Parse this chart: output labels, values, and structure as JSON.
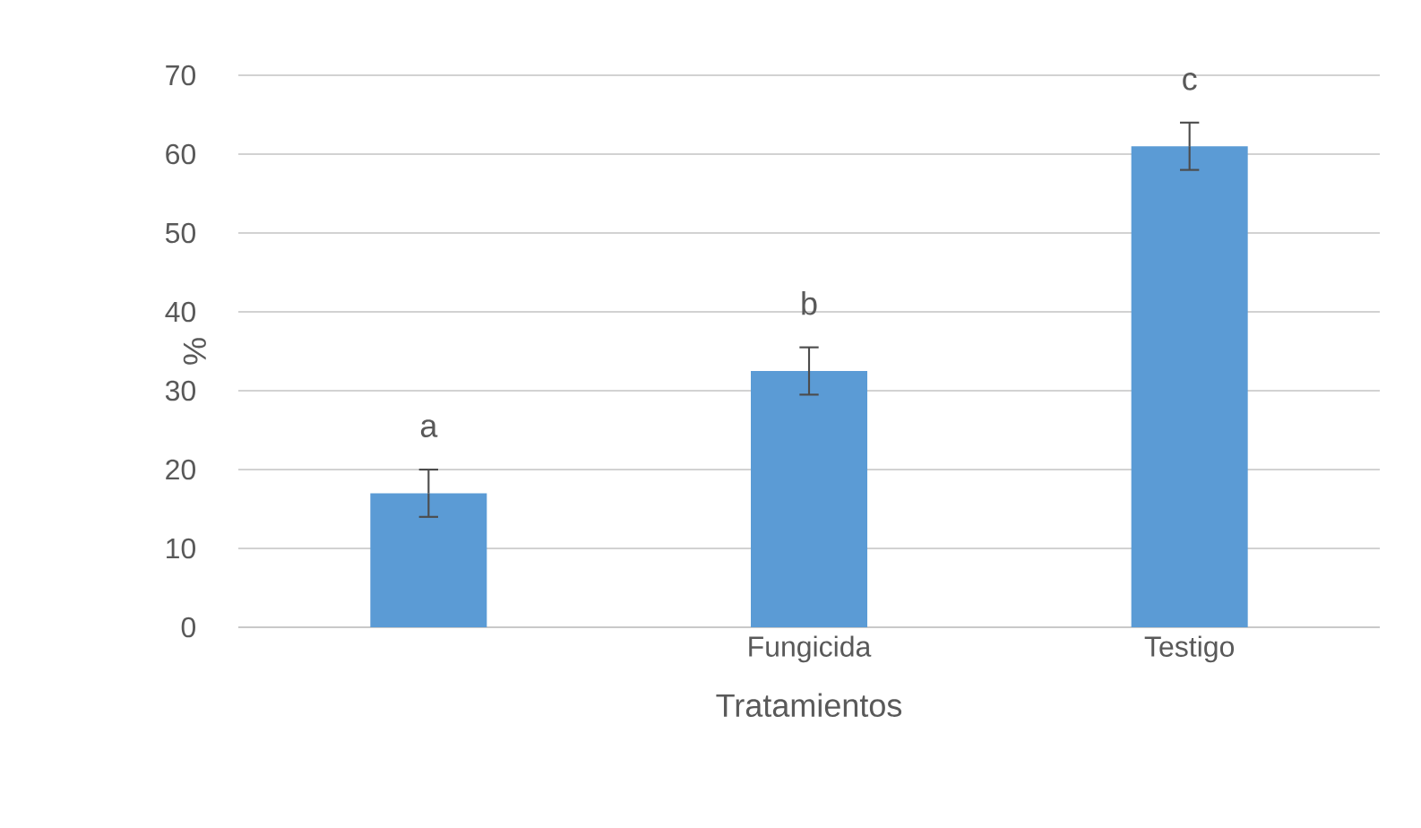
{
  "chart_data": {
    "type": "bar",
    "xlabel": "Tratamientos",
    "ylabel": "%",
    "categories": [
      null,
      "Fungicida",
      "Testigo"
    ],
    "values": [
      17,
      32.5,
      61
    ],
    "errors": [
      3,
      3,
      3
    ],
    "color": "#5b9bd5",
    "ylim": [
      0,
      70
    ],
    "yticks": [
      0,
      10,
      20,
      30,
      40,
      50,
      60,
      70
    ],
    "grid": "y",
    "annotations": [
      "a",
      "b",
      "c"
    ]
  }
}
